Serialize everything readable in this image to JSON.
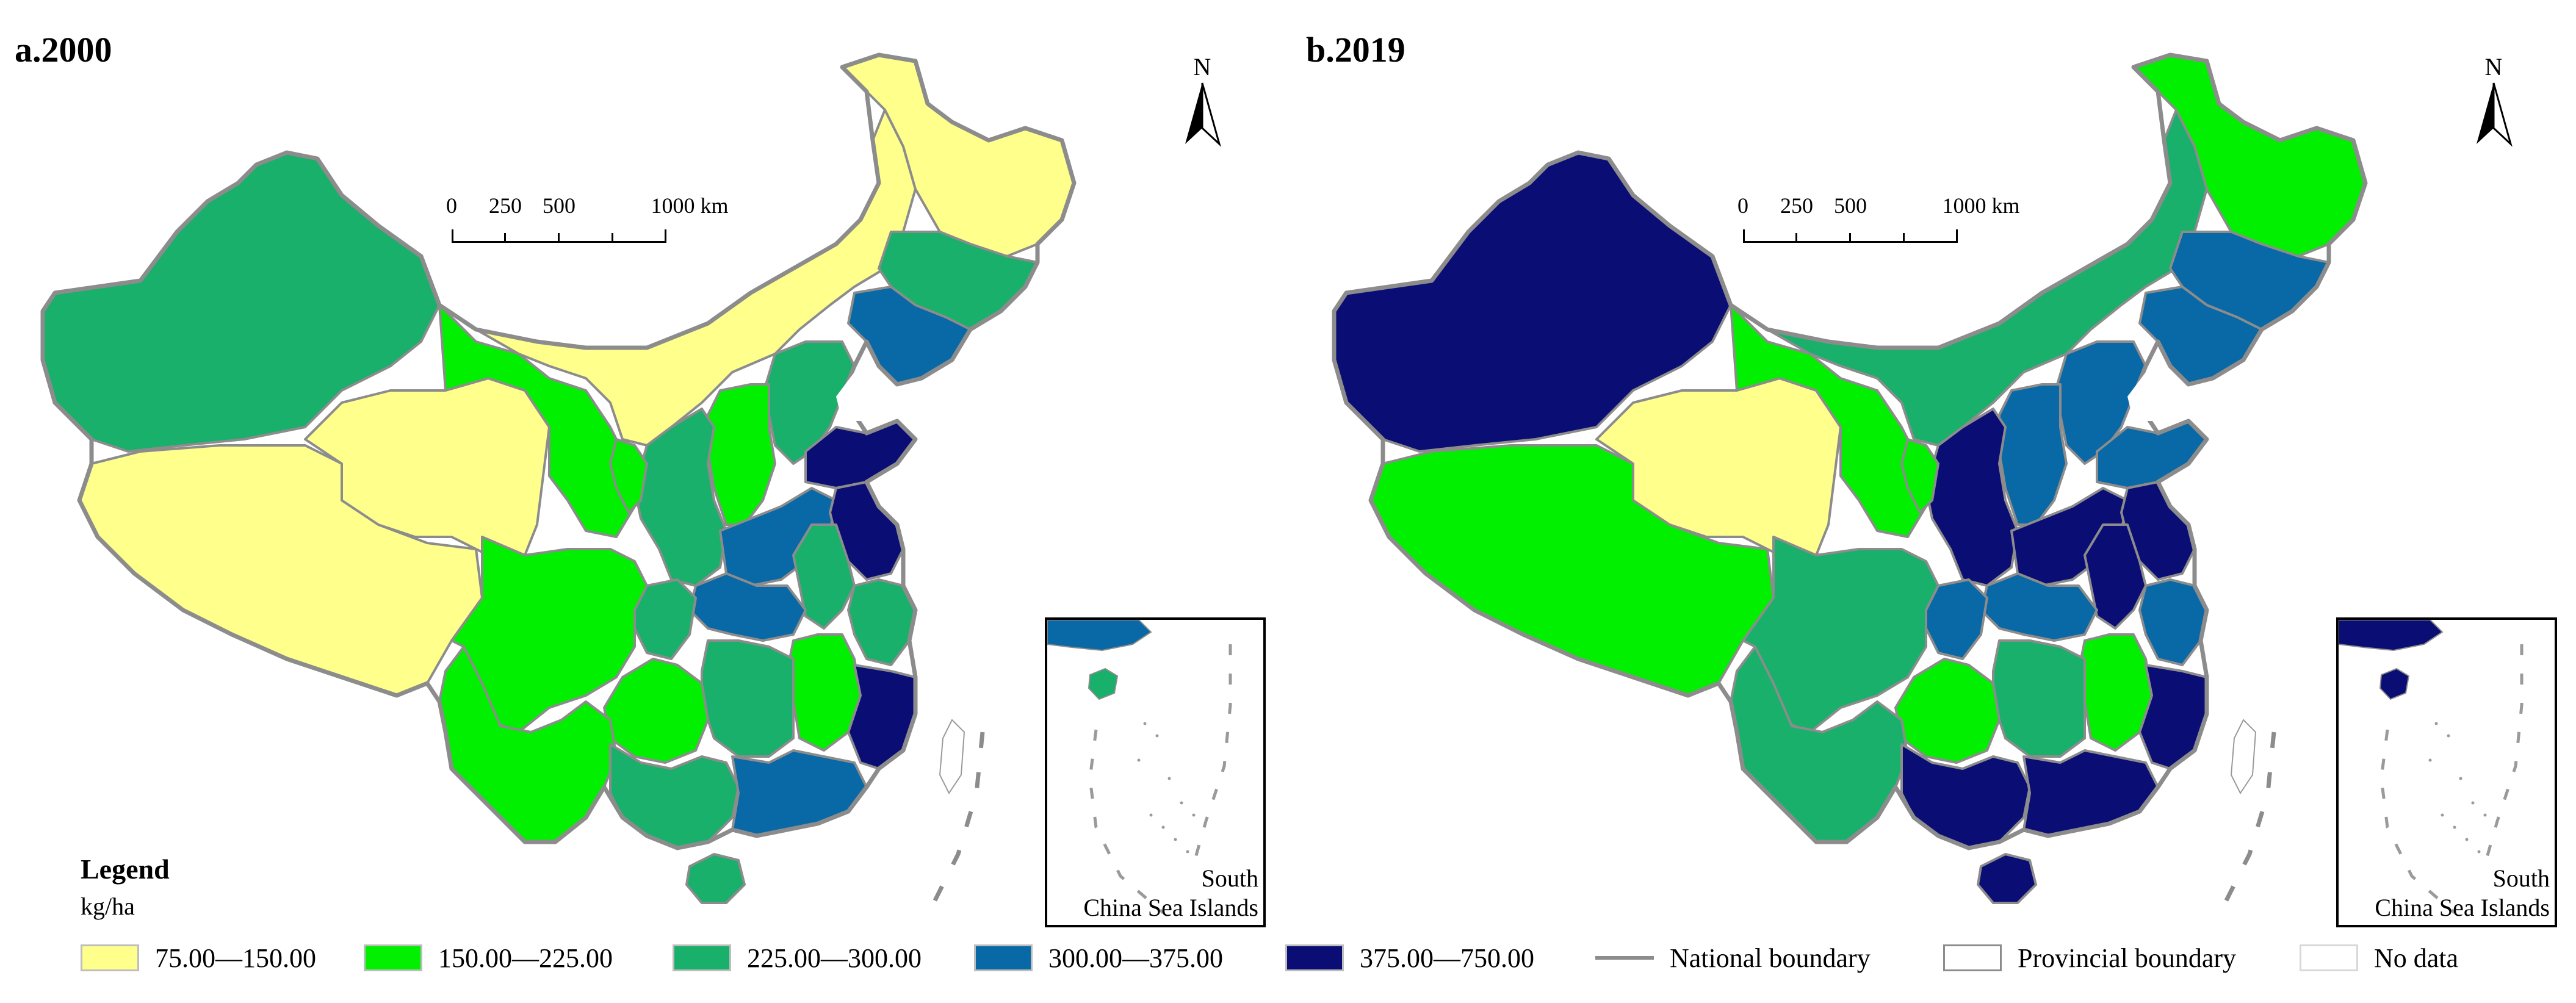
{
  "panels": [
    {
      "title": "a.2000"
    },
    {
      "title": "b.2019"
    }
  ],
  "north_label": "N",
  "scale_labels": [
    "0",
    "250",
    "500",
    "1000 km"
  ],
  "inset_label_line1": "South",
  "inset_label_line2": "China Sea Islands",
  "legend": {
    "title": "Legend",
    "unit": "kg/ha",
    "classes": [
      {
        "label": "75.00—150.00",
        "color": "#ffff8c"
      },
      {
        "label": "150.00—225.00",
        "color": "#00f000"
      },
      {
        "label": "225.00—300.00",
        "color": "#18b06a"
      },
      {
        "label": "300.00—375.00",
        "color": "#0968a6"
      },
      {
        "label": "375.00—750.00",
        "color": "#0a0d74"
      }
    ],
    "national_boundary": "National boundary",
    "provincial_boundary": "Provincial boundary",
    "no_data": "No data",
    "boundary_color": "#8c8c8c"
  },
  "maps": {
    "y2000": {
      "xinjiang": 2,
      "tibet": 0,
      "qinghai": 0,
      "gansu": 1,
      "inner_mongolia": 0,
      "heilongjiang": 0,
      "jilin": 2,
      "liaoning": 3,
      "sichuan": 1,
      "yunnan": 1,
      "guangxi": 2,
      "guangdong": 3,
      "fujian": 4,
      "jiangxi": 1,
      "hunan": 2,
      "guizhou": 1,
      "chongqing": 2,
      "hubei": 3,
      "henan": 3,
      "shandong": 4,
      "hebei": 2,
      "shanxi": 1,
      "shaanxi": 2,
      "ningxia": 1,
      "anhui": 2,
      "jiangsu": 4,
      "zhejiang": 2,
      "hainan": 2
    },
    "y2019": {
      "xinjiang": 4,
      "tibet": 1,
      "qinghai": 0,
      "gansu": 1,
      "inner_mongolia": 2,
      "heilongjiang": 1,
      "jilin": 3,
      "liaoning": 3,
      "sichuan": 2,
      "yunnan": 2,
      "guangxi": 4,
      "guangdong": 4,
      "fujian": 4,
      "jiangxi": 1,
      "hunan": 2,
      "guizhou": 1,
      "chongqing": 3,
      "hubei": 3,
      "henan": 4,
      "shandong": 3,
      "hebei": 3,
      "shanxi": 3,
      "shaanxi": 4,
      "ningxia": 1,
      "anhui": 4,
      "jiangsu": 4,
      "zhejiang": 3,
      "hainan": 4
    }
  }
}
